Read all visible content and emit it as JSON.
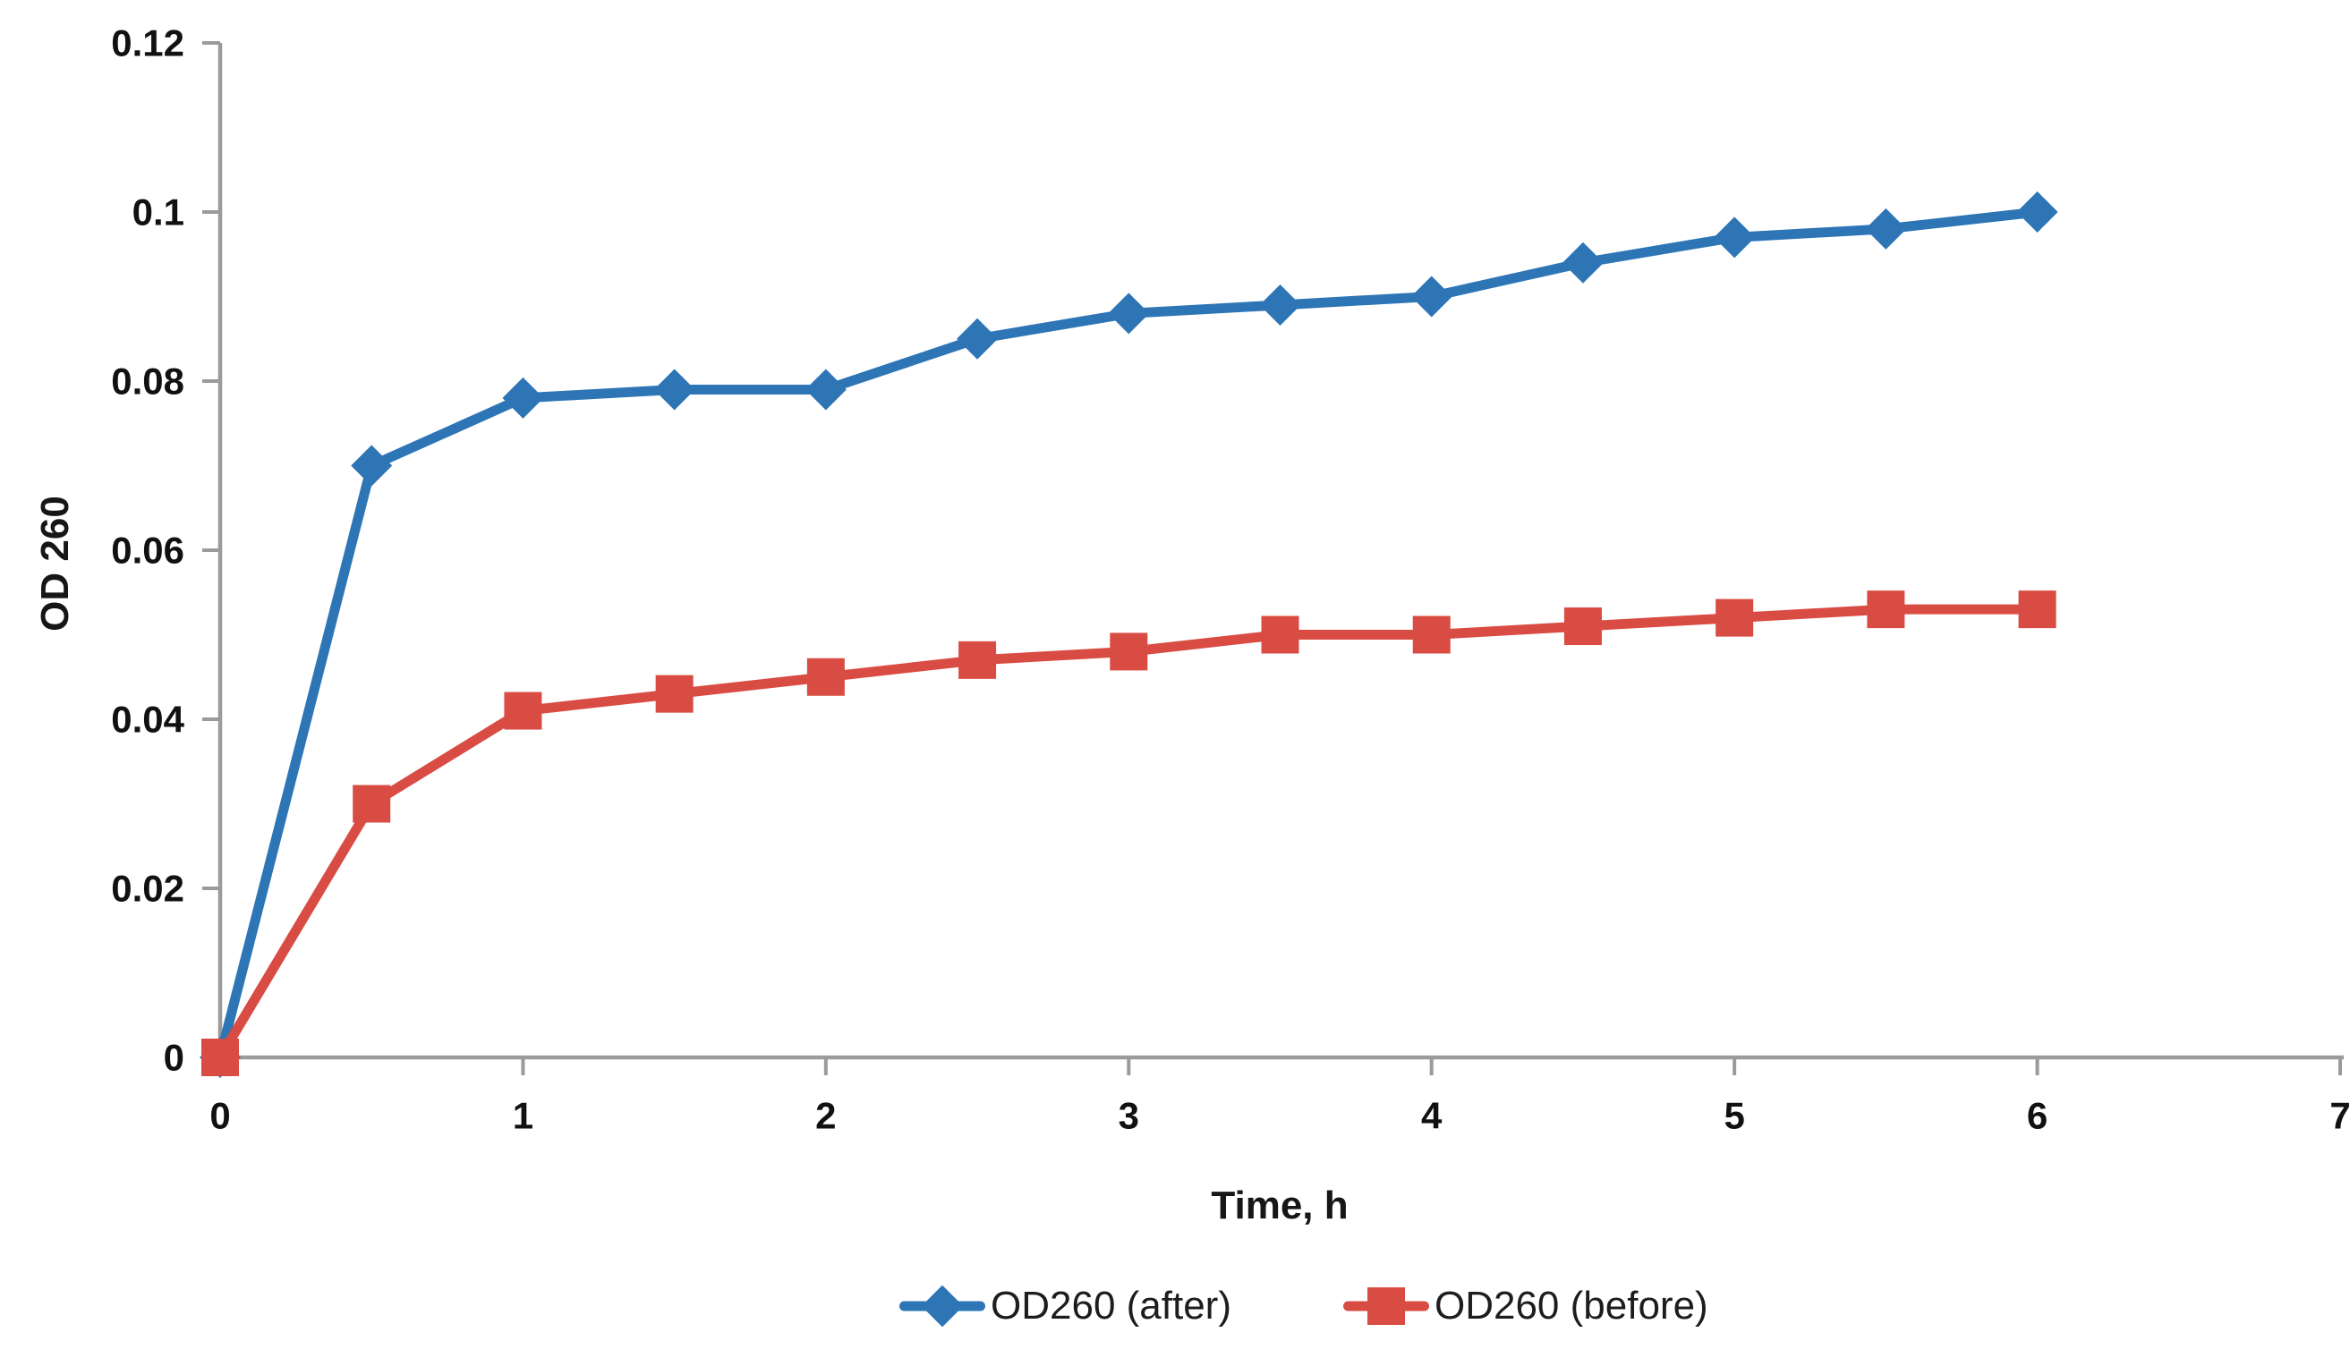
{
  "chart_data": {
    "type": "line",
    "title": "",
    "xlabel": "Time, h",
    "ylabel": "OD 260",
    "x": [
      0,
      0.5,
      1,
      1.5,
      2,
      2.5,
      3,
      3.5,
      4,
      4.5,
      5,
      5.5,
      6
    ],
    "series": [
      {
        "name": "OD260 (after)",
        "marker": "diamond",
        "color": "#2E75B6",
        "values": [
          0,
          0.07,
          0.078,
          0.079,
          0.079,
          0.085,
          0.088,
          0.089,
          0.09,
          0.094,
          0.097,
          0.098,
          0.1
        ]
      },
      {
        "name": "OD260 (before)",
        "marker": "square",
        "color": "#D94C43",
        "values": [
          0,
          0.03,
          0.041,
          0.043,
          0.045,
          0.047,
          0.048,
          0.05,
          0.05,
          0.051,
          0.052,
          0.053,
          0.053
        ]
      }
    ],
    "xlim": [
      0,
      7
    ],
    "ylim": [
      0,
      0.12
    ],
    "x_ticks": [
      0,
      1,
      2,
      3,
      4,
      5,
      6,
      7
    ],
    "x_tick_labels": [
      "0",
      "1",
      "2",
      "3",
      "4",
      "5",
      "6",
      "7"
    ],
    "y_ticks": [
      0,
      0.02,
      0.04,
      0.06,
      0.08,
      0.1,
      0.12
    ],
    "y_tick_labels": [
      "0",
      "0.02",
      "0.04",
      "0.06",
      "0.08",
      "0.1",
      "0.12"
    ],
    "grid": false,
    "legend_position": "bottom",
    "axis_color": "#9B9B9B",
    "tick_label_color": "#111111",
    "axis_title_color": "#161616",
    "legend_text_color": "#1d1d1d",
    "background_color": "#ffffff"
  }
}
